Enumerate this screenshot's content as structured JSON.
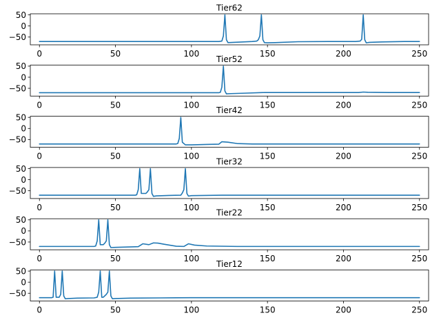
{
  "chart_data": [
    {
      "type": "line",
      "title": "Tier62",
      "xlim": [
        -6,
        256
      ],
      "ylim": [
        -85,
        55
      ],
      "x_ticks": [
        0,
        50,
        100,
        150,
        200,
        250
      ],
      "y_ticks": [
        50,
        0,
        -50
      ],
      "x_tick_labels": [
        "0",
        "50",
        "100",
        "150",
        "200",
        "250"
      ],
      "y_tick_labels": [
        "50",
        "0",
        "−50"
      ],
      "line_color": "#1f77b4",
      "series": [
        {
          "x": [
            0,
            118,
            120,
            121,
            122,
            123,
            124,
            140,
            143,
            144,
            145,
            146,
            147,
            148,
            150,
            155,
            170,
            190,
            208,
            211,
            212,
            213,
            214,
            215,
            217,
            225,
            240,
            250
          ],
          "y": [
            -70,
            -70,
            -68,
            -45,
            50,
            -62,
            -75,
            -70,
            -68,
            -62,
            -45,
            50,
            -62,
            -75,
            -76,
            -75,
            -71,
            -70,
            -70,
            -68,
            -60,
            50,
            -62,
            -76,
            -74,
            -72,
            -70,
            -70
          ]
        }
      ]
    },
    {
      "type": "line",
      "title": "Tier52",
      "xlim": [
        -6,
        256
      ],
      "ylim": [
        -85,
        55
      ],
      "x_ticks": [
        0,
        50,
        100,
        150,
        200,
        250
      ],
      "y_ticks": [
        50,
        0,
        -50
      ],
      "x_tick_labels": [
        "0",
        "50",
        "100",
        "150",
        "200",
        "250"
      ],
      "y_tick_labels": [
        "50",
        "0",
        "−50"
      ],
      "line_color": "#1f77b4",
      "series": [
        {
          "x": [
            0,
            118,
            119,
            120,
            121,
            122,
            123,
            126,
            135,
            148,
            170,
            210,
            213,
            216,
            230,
            250
          ],
          "y": [
            -70,
            -70,
            -68,
            -45,
            50,
            -62,
            -75,
            -74,
            -72,
            -69,
            -69,
            -69,
            -67,
            -68,
            -69,
            -69
          ]
        }
      ]
    },
    {
      "type": "line",
      "title": "Tier42",
      "xlim": [
        -6,
        256
      ],
      "ylim": [
        -85,
        55
      ],
      "x_ticks": [
        0,
        50,
        100,
        150,
        200,
        250
      ],
      "y_ticks": [
        50,
        0,
        -50
      ],
      "x_tick_labels": [
        "0",
        "50",
        "100",
        "150",
        "200",
        "250"
      ],
      "y_tick_labels": [
        "50",
        "0",
        "−50"
      ],
      "line_color": "#1f77b4",
      "series": [
        {
          "x": [
            0,
            90,
            91,
            92,
            93,
            94,
            96,
            100,
            110,
            118,
            120,
            124,
            130,
            140,
            160,
            250
          ],
          "y": [
            -70,
            -70,
            -68,
            -45,
            50,
            -62,
            -74,
            -74,
            -72,
            -71,
            -60,
            -62,
            -68,
            -70,
            -70,
            -70
          ]
        }
      ]
    },
    {
      "type": "line",
      "title": "Tier32",
      "xlim": [
        -6,
        256
      ],
      "ylim": [
        -85,
        55
      ],
      "x_ticks": [
        0,
        50,
        100,
        150,
        200,
        250
      ],
      "y_ticks": [
        50,
        0,
        -50
      ],
      "x_tick_labels": [
        "0",
        "50",
        "100",
        "150",
        "200",
        "250"
      ],
      "y_tick_labels": [
        "50",
        "0",
        "−50"
      ],
      "line_color": "#1f77b4",
      "series": [
        {
          "x": [
            0,
            63,
            64,
            65,
            66,
            67,
            70,
            71,
            72,
            73,
            74,
            75,
            77,
            85,
            93,
            94,
            95,
            96,
            97,
            98,
            100,
            120,
            250
          ],
          "y": [
            -70,
            -70,
            -68,
            -45,
            50,
            -62,
            -62,
            -55,
            -45,
            50,
            -62,
            -75,
            -73,
            -71,
            -70,
            -60,
            -45,
            50,
            -62,
            -74,
            -72,
            -70,
            -70
          ]
        }
      ]
    },
    {
      "type": "line",
      "title": "Tier22",
      "xlim": [
        -6,
        256
      ],
      "ylim": [
        -85,
        55
      ],
      "x_ticks": [
        0,
        50,
        100,
        150,
        200,
        250
      ],
      "y_ticks": [
        50,
        0,
        -50
      ],
      "x_tick_labels": [
        "0",
        "50",
        "100",
        "150",
        "200",
        "250"
      ],
      "y_tick_labels": [
        "50",
        "0",
        "−50"
      ],
      "line_color": "#1f77b4",
      "series": [
        {
          "x": [
            0,
            36,
            37,
            38,
            39,
            40,
            42,
            43,
            44,
            45,
            46,
            47,
            50,
            60,
            65,
            68,
            72,
            75,
            78,
            82,
            90,
            95,
            98,
            102,
            110,
            130,
            250
          ],
          "y": [
            -70,
            -70,
            -68,
            -45,
            50,
            -62,
            -62,
            -55,
            -45,
            50,
            -62,
            -75,
            -74,
            -72,
            -71,
            -58,
            -62,
            -54,
            -55,
            -60,
            -69,
            -70,
            -58,
            -64,
            -68,
            -70,
            -70
          ]
        }
      ]
    },
    {
      "type": "line",
      "title": "Tier12",
      "xlim": [
        -6,
        256
      ],
      "ylim": [
        -85,
        55
      ],
      "x_ticks": [
        0,
        50,
        100,
        150,
        200,
        250
      ],
      "y_ticks": [
        50,
        0,
        -50
      ],
      "x_tick_labels": [
        "0",
        "50",
        "100",
        "150",
        "200",
        "250"
      ],
      "y_tick_labels": [
        "50",
        "0",
        "−50"
      ],
      "line_color": "#1f77b4",
      "series": [
        {
          "x": [
            0,
            8,
            9,
            10,
            11,
            13,
            14,
            15,
            16,
            17,
            19,
            25,
            36,
            38,
            39,
            40,
            41,
            42,
            44,
            45,
            46,
            47,
            48,
            50,
            60,
            80,
            100,
            250
          ],
          "y": [
            -70,
            -70,
            -68,
            50,
            -68,
            -68,
            -55,
            50,
            -62,
            -75,
            -74,
            -72,
            -71,
            -68,
            -45,
            50,
            -68,
            -68,
            -55,
            -45,
            50,
            -62,
            -75,
            -74,
            -72,
            -71,
            -70,
            -70
          ]
        }
      ]
    }
  ]
}
